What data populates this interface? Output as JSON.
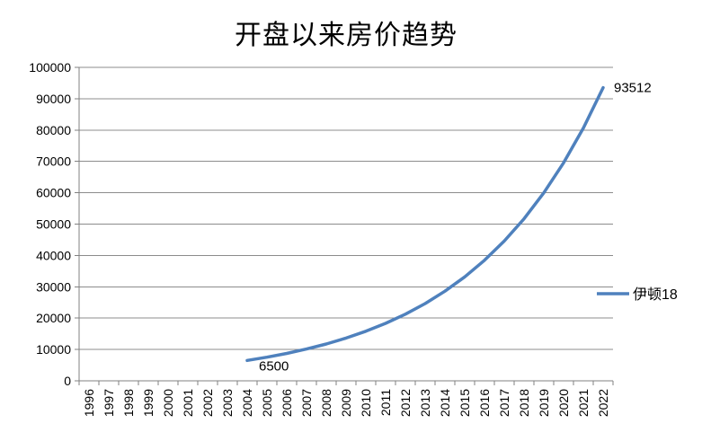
{
  "chart_data": {
    "type": "line",
    "title": "开盘以来房价趋势",
    "categories": [
      "1996",
      "1997",
      "1998",
      "1999",
      "2000",
      "2001",
      "2002",
      "2003",
      "2004",
      "2005",
      "2006",
      "2007",
      "2008",
      "2009",
      "2010",
      "2011",
      "2012",
      "2013",
      "2014",
      "2015",
      "2016",
      "2017",
      "2018",
      "2019",
      "2020",
      "2021",
      "2022"
    ],
    "series": [
      {
        "name": "伊顿18",
        "color": "#4f81bd",
        "values": [
          null,
          null,
          null,
          null,
          null,
          null,
          null,
          null,
          6500,
          7538,
          8741,
          10137,
          11755,
          13632,
          15808,
          18332,
          21259,
          24653,
          28589,
          33154,
          38447,
          44586,
          51704,
          59959,
          69532,
          80633,
          93512
        ]
      }
    ],
    "ylim": [
      0,
      100000
    ],
    "ytick_step": 10000,
    "ytick_labels": [
      "100000",
      "90000",
      "80000",
      "70000",
      "60000",
      "50000",
      "40000",
      "30000",
      "20000",
      "10000",
      "0"
    ],
    "grid": true,
    "legend": {
      "position": "right",
      "label": "伊顿18"
    },
    "annotations": [
      {
        "text": "6500",
        "category": "2004",
        "value": 6500,
        "placement": "below-right"
      },
      {
        "text": "93512",
        "category": "2022",
        "value": 93512,
        "placement": "right"
      }
    ],
    "colors": {
      "line": "#4f81bd",
      "gridline": "#8c8c8c",
      "axis": "#808080",
      "text": "#000000",
      "background": "#ffffff"
    }
  }
}
